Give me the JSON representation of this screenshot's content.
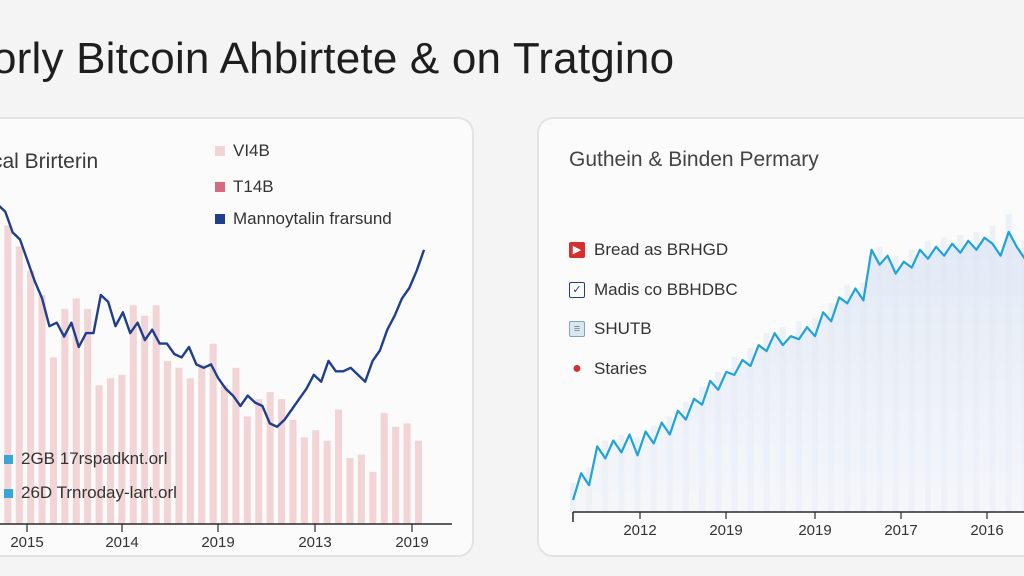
{
  "title": "orly Bitcoin Ahbirtete & on Tratgino",
  "chart_data": [
    {
      "type": "line",
      "title": "cal Brirterin",
      "legend": [
        {
          "label": "VI4B",
          "color": "#f2d4d6"
        },
        {
          "label": "T14B",
          "color": "#d96a7e"
        },
        {
          "label": "Mannoytalin frarsund",
          "color": "#1f3f8c"
        }
      ],
      "notes": [
        {
          "label": "2GB 17rspadknt.orl",
          "color": "#3aa6d6"
        },
        {
          "label": "26D Trnroday-lart.orl",
          "color": "#3aa6d6"
        }
      ],
      "x_ticks": [
        "2015",
        "2014",
        "2019",
        "2013",
        "2019"
      ],
      "ylim": [
        0,
        100
      ],
      "bar_values": [
        86,
        80,
        73,
        66,
        48,
        62,
        65,
        62,
        40,
        42,
        43,
        63,
        60,
        63,
        47,
        45,
        42,
        46,
        52,
        40,
        45,
        31,
        36,
        38,
        36,
        30,
        25,
        27,
        24,
        33,
        19,
        20,
        15,
        32,
        28,
        29,
        24
      ],
      "line_values": [
        92,
        90,
        84,
        82,
        76,
        70,
        65,
        57,
        58,
        54,
        58,
        51,
        55,
        55,
        66,
        64,
        57,
        61,
        55,
        58,
        53,
        56,
        52,
        52,
        49,
        48,
        51,
        46,
        45,
        46,
        42,
        39,
        37,
        34,
        37,
        35,
        34,
        29,
        28,
        30,
        33,
        36,
        39,
        43,
        41,
        47,
        44,
        44,
        45,
        43,
        41,
        47,
        50,
        56,
        60,
        65,
        68,
        73,
        79
      ]
    },
    {
      "type": "area",
      "title": "Guthein & Binden Permary",
      "legend": [
        {
          "label": "Bread as BRHGD",
          "icon": "play-icon",
          "color": "#d62f2f"
        },
        {
          "label": "Madis co BBHDBC",
          "icon": "check-icon",
          "color": "#1f3f8c"
        },
        {
          "label": "SHUTB",
          "icon": "lines-icon",
          "color": "#7da4bb"
        },
        {
          "label": "Staries",
          "icon": "dot-icon",
          "color": "#d62f2f"
        }
      ],
      "x_ticks": [
        "2012",
        "2019",
        "2019",
        "2017",
        "2016"
      ],
      "ylim": [
        0,
        100
      ],
      "series": [
        {
          "color": "#1ea4d8",
          "values": [
            4,
            13,
            9,
            22,
            18,
            24,
            20,
            26,
            19,
            27,
            23,
            30,
            26,
            34,
            31,
            38,
            36,
            44,
            41,
            47,
            46,
            51,
            49,
            56,
            54,
            60,
            56,
            59,
            58,
            62,
            59,
            67,
            64,
            72,
            70,
            75,
            71,
            88,
            83,
            86,
            80,
            84,
            82,
            88,
            85,
            89,
            86,
            90,
            87,
            91,
            88,
            92,
            90,
            86,
            94,
            89,
            85,
            96,
            92,
            98
          ]
        }
      ]
    }
  ]
}
